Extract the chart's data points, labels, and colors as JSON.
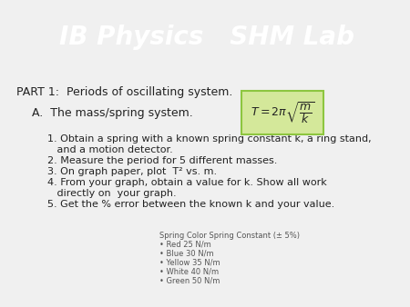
{
  "title": "IB Physics   SHM Lab",
  "title_bg_color": "#8dc63f",
  "title_shadow_color": "#6a9e30",
  "title_text_color": "#ffffff",
  "bg_color": "#f0f0f0",
  "part1_text": "PART 1:  Periods of oscillating system.",
  "section_a": "A.  The mass/spring system.",
  "formula_box_facecolor": "#d4e89a",
  "formula_box_edgecolor": "#8dc63f",
  "steps": [
    "1. Obtain a spring with a known spring constant k, a ring stand,\n   and a motion detector.",
    "2. Measure the period for 5 different masses.",
    "3. On graph paper, plot  T² vs. m.",
    "4. From your graph, obtain a value for k. Show all work\n   directly on  your graph.",
    "5. Get the % error between the known k and your value."
  ],
  "bullet_header": "Spring Color Spring Constant (± 5%)",
  "bullets": [
    "Red 25 N/m",
    "Blue 30 N/m",
    "Yellow 35 N/m",
    "White 40 N/m",
    "Green 50 N/m"
  ],
  "title_fontsize": 20,
  "part1_fontsize": 9,
  "section_fontsize": 9,
  "step_fontsize": 8,
  "bullet_fontsize": 6
}
